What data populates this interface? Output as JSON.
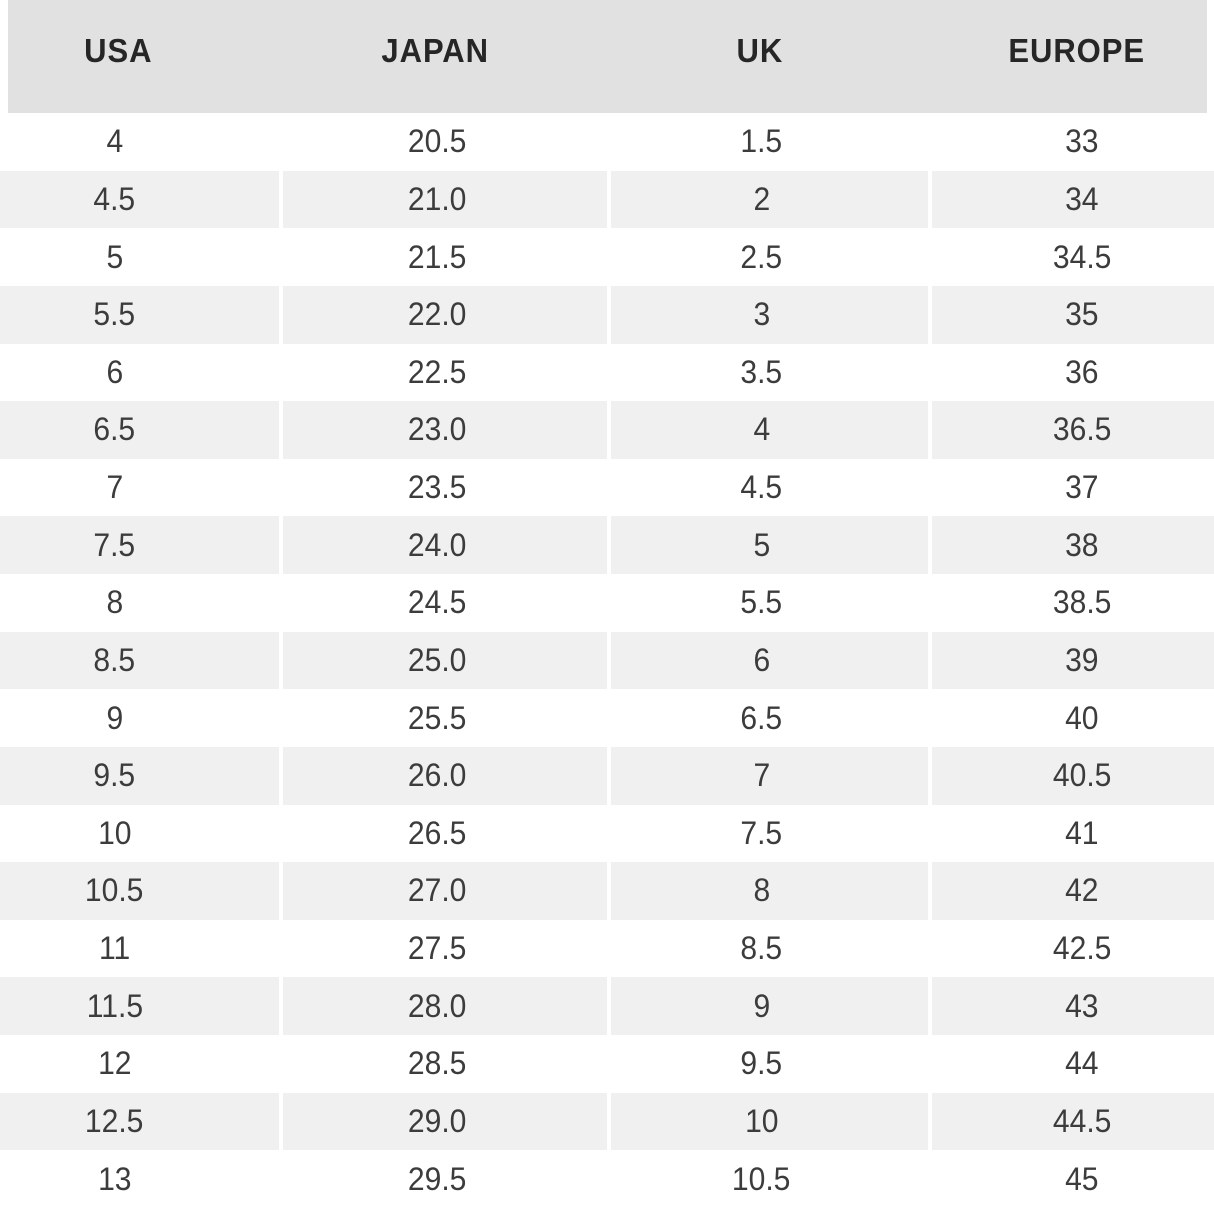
{
  "colors": {
    "header_bg": "#e1e1e1",
    "row_bg": "#ffffff",
    "row_alt_bg": "#f0f0f0",
    "header_text": "#262626",
    "cell_text": "#3c3c3c"
  },
  "chart_data": {
    "type": "table",
    "columns": [
      "USA",
      "JAPAN",
      "UK",
      "EUROPE"
    ],
    "rows": [
      [
        "4",
        "20.5",
        "1.5",
        "33"
      ],
      [
        "4.5",
        "21.0",
        "2",
        "34"
      ],
      [
        "5",
        "21.5",
        "2.5",
        "34.5"
      ],
      [
        "5.5",
        "22.0",
        "3",
        "35"
      ],
      [
        "6",
        "22.5",
        "3.5",
        "36"
      ],
      [
        "6.5",
        "23.0",
        "4",
        "36.5"
      ],
      [
        "7",
        "23.5",
        "4.5",
        "37"
      ],
      [
        "7.5",
        "24.0",
        "5",
        "38"
      ],
      [
        "8",
        "24.5",
        "5.5",
        "38.5"
      ],
      [
        "8.5",
        "25.0",
        "6",
        "39"
      ],
      [
        "9",
        "25.5",
        "6.5",
        "40"
      ],
      [
        "9.5",
        "26.0",
        "7",
        "40.5"
      ],
      [
        "10",
        "26.5",
        "7.5",
        "41"
      ],
      [
        "10.5",
        "27.0",
        "8",
        "42"
      ],
      [
        "11",
        "27.5",
        "8.5",
        "42.5"
      ],
      [
        "11.5",
        "28.0",
        "9",
        "43"
      ],
      [
        "12",
        "28.5",
        "9.5",
        "44"
      ],
      [
        "12.5",
        "29.0",
        "10",
        "44.5"
      ],
      [
        "13",
        "29.5",
        "10.5",
        "45"
      ]
    ]
  }
}
